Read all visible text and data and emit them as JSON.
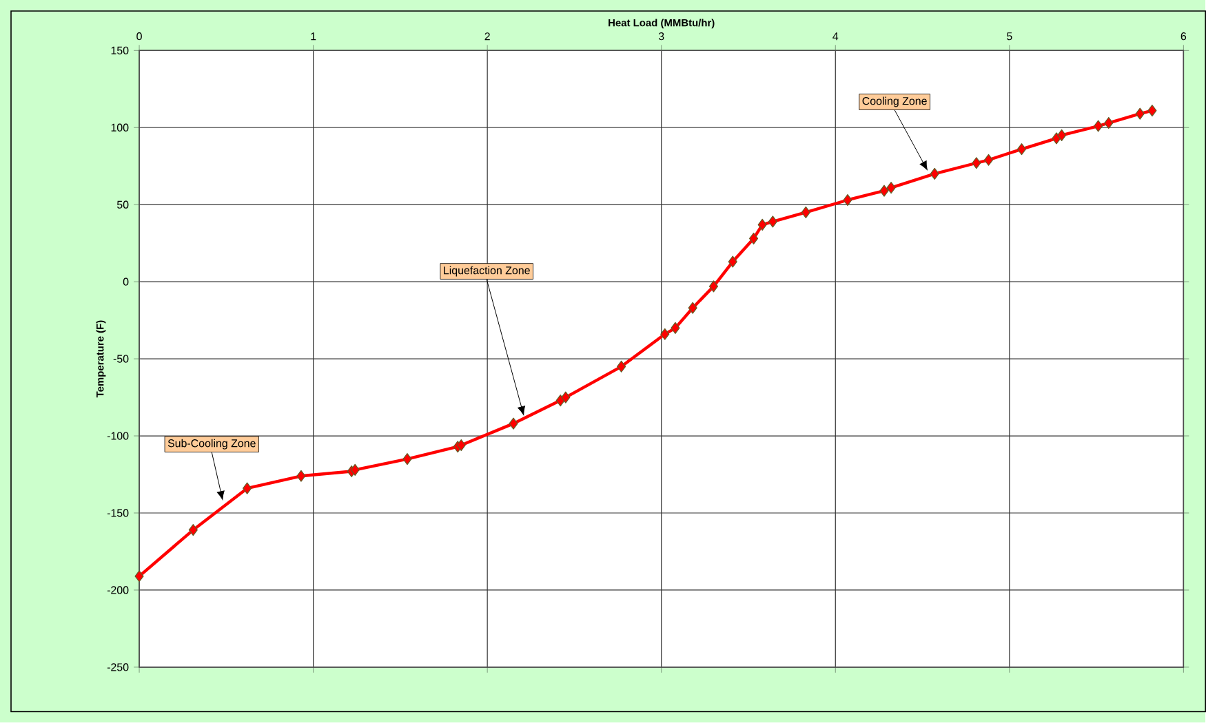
{
  "chart_data": {
    "type": "line",
    "xlabel": "Heat Load (MMBtu/hr)",
    "ylabel": "Temperature (F)",
    "xlim": [
      0,
      6
    ],
    "ylim": [
      -250,
      150
    ],
    "xticks": [
      0,
      1,
      2,
      3,
      4,
      5,
      6
    ],
    "yticks": [
      -250,
      -200,
      -150,
      -100,
      -50,
      0,
      50,
      100,
      150
    ],
    "grid": true,
    "marker": "diamond",
    "line_style": "solid",
    "series": [
      {
        "color": "#ff0000",
        "x": [
          0,
          0.31,
          0.62,
          0.93,
          1.22,
          1.24,
          1.54,
          1.83,
          1.85,
          2.15,
          2.42,
          2.45,
          2.77,
          3.02,
          3.08,
          3.18,
          3.3,
          3.41,
          3.53,
          3.58,
          3.64,
          3.83,
          4.07,
          4.28,
          4.32,
          4.57,
          4.81,
          4.88,
          5.07,
          5.27,
          5.3,
          5.51,
          5.57,
          5.75,
          5.82
        ],
        "values": [
          -191,
          -161,
          -134,
          -126,
          -123,
          -122,
          -115,
          -107,
          -106,
          -92,
          -77,
          -75,
          -55,
          -34,
          -30,
          -17,
          -3,
          13,
          28,
          37,
          39,
          45,
          53,
          59,
          61,
          70,
          77,
          79,
          86,
          93,
          95,
          101,
          103,
          109,
          111
        ]
      }
    ],
    "annotations": [
      {
        "text": "Sub-Cooling Zone",
        "x": 0.48,
        "y": -142
      },
      {
        "text": "Liquefaction Zone",
        "x": 2.21,
        "y": -87
      },
      {
        "text": "Cooling Zone",
        "x": 4.53,
        "y": 72
      }
    ]
  }
}
